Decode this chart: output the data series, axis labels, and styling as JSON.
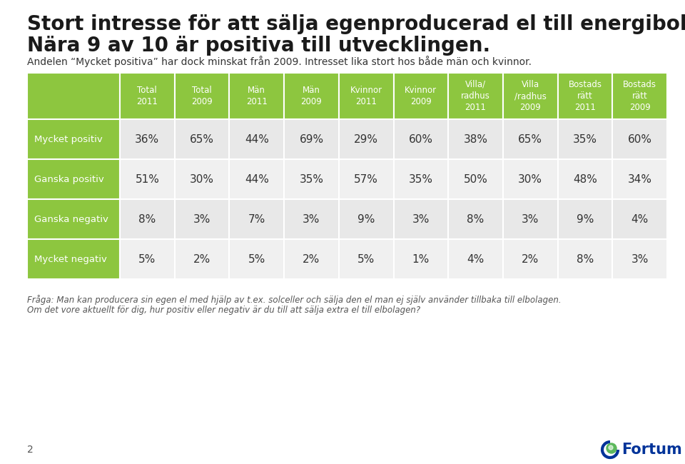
{
  "title_line1": "Stort intresse för att sälja egenproducerad el till energibolagen.",
  "title_line2": "Nära 9 av 10 är positiva till utvecklingen.",
  "subtitle": "Andelen “Mycket positiva” har dock minskat från 2009. Intresset lika stort hos både män och kvinnor.",
  "bg_color": "#ffffff",
  "header_bg": "#8dc63f",
  "header_text_color": "#ffffff",
  "row_label_bg": "#8dc63f",
  "row_label_text_color": "#ffffff",
  "row_odd_bg": "#e8e8e8",
  "row_even_bg": "#f0f0f0",
  "col_headers": [
    "Total\n2011",
    "Total\n2009",
    "Män\n2011",
    "Män\n2009",
    "Kvinnor\n2011",
    "Kvinnor\n2009",
    "Villa/\nradhus\n2011",
    "Villa\n/radhus\n2009",
    "Bostads\nrätt\n2011",
    "Bostads\nrätt\n2009"
  ],
  "row_labels": [
    "Mycket positiv",
    "Ganska positiv",
    "Ganska negativ",
    "Mycket negativ"
  ],
  "table_data": [
    [
      "36%",
      "65%",
      "44%",
      "69%",
      "29%",
      "60%",
      "38%",
      "65%",
      "35%",
      "60%"
    ],
    [
      "51%",
      "30%",
      "44%",
      "35%",
      "57%",
      "35%",
      "50%",
      "30%",
      "48%",
      "34%"
    ],
    [
      "8%",
      "3%",
      "7%",
      "3%",
      "9%",
      "3%",
      "8%",
      "3%",
      "9%",
      "4%"
    ],
    [
      "5%",
      "2%",
      "5%",
      "2%",
      "5%",
      "1%",
      "4%",
      "2%",
      "8%",
      "3%"
    ]
  ],
  "footnote_line1": "Fråga: Man kan producera sin egen el med hjälp av t.ex. solceller och sälja den el man ej själv använder tillbaka till elbolagen.",
  "footnote_line2": "Om det vore aktuellt för dig, hur positiv eller negativ är du till att sälja extra el till elbolagen?",
  "page_number": "2",
  "fortum_text": "Fortum",
  "title_fontsize": 20,
  "subtitle_fontsize": 10,
  "header_fontsize": 8.5,
  "cell_fontsize": 11,
  "row_label_fontsize": 9.5,
  "footnote_fontsize": 8.5
}
